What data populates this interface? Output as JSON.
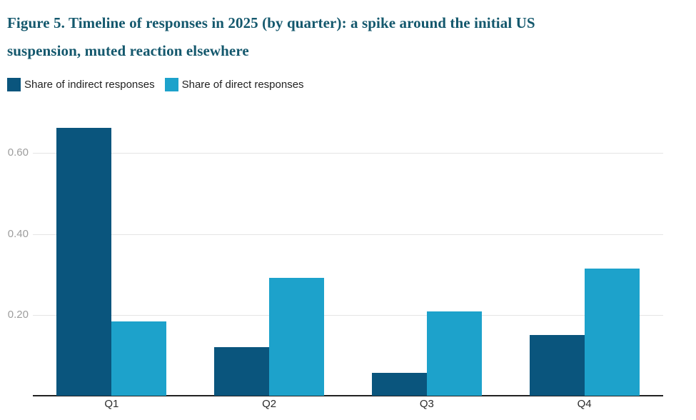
{
  "figure": {
    "title_lines": [
      "Figure 5. Timeline of responses in 2025 (by quarter): a spike around the initial US",
      "suspension, muted reaction elsewhere"
    ]
  },
  "legend": {
    "items": [
      {
        "label": "Share of indirect responses",
        "color": "#0A557D"
      },
      {
        "label": "Share of direct responses",
        "color": "#1DA2CB"
      }
    ]
  },
  "chart_data": {
    "type": "bar",
    "title": "Figure 5. Timeline of responses in 2025 (by quarter): a spike around the initial US suspension, muted reaction elsewhere",
    "categories": [
      "Q1",
      "Q2",
      "Q3",
      "Q4"
    ],
    "series": [
      {
        "name": "Share of indirect responses",
        "color": "#0A557D",
        "values": [
          0.663,
          0.121,
          0.057,
          0.151
        ]
      },
      {
        "name": "Share of direct responses",
        "color": "#1DA2CB",
        "values": [
          0.183,
          0.292,
          0.208,
          0.315
        ]
      }
    ],
    "xlabel": "",
    "ylabel": "",
    "ylim": [
      0,
      0.713
    ],
    "yticks": [
      0.2,
      0.4,
      0.6
    ],
    "ytick_labels": [
      "0.20",
      "0.40",
      "0.60"
    ],
    "grid": true,
    "legend_position": "top",
    "colors": {
      "title_text": "#14586D",
      "axis_line": "#222222",
      "gridline": "#e4e4e4",
      "ytick_text": "#9d9d9d",
      "xtick_text": "#2b2b2b",
      "background": "#ffffff"
    }
  }
}
